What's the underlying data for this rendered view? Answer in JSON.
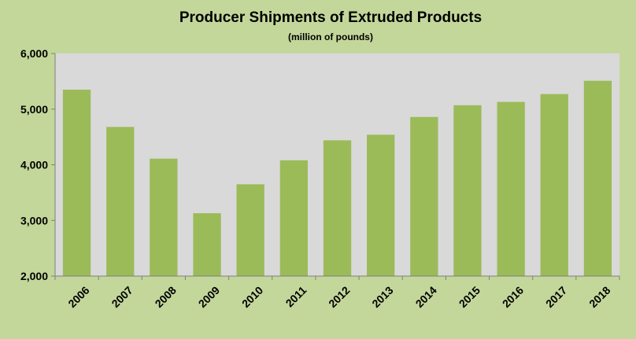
{
  "chart_data": {
    "type": "bar",
    "title": "Producer Shipments of Extruded Products",
    "subtitle": "(million of pounds)",
    "categories": [
      "2006",
      "2007",
      "2008",
      "2009",
      "2010",
      "2011",
      "2012",
      "2013",
      "2014",
      "2015",
      "2016",
      "2017",
      "2018"
    ],
    "values": [
      5350,
      4680,
      4110,
      3130,
      3650,
      4080,
      4440,
      4540,
      4860,
      5070,
      5130,
      5270,
      5510
    ],
    "ylim": [
      2000,
      6000
    ],
    "yticks": [
      2000,
      3000,
      4000,
      5000,
      6000
    ],
    "ytick_labels": [
      "2,000",
      "3,000",
      "4,000",
      "5,000",
      "6,000"
    ],
    "grid": false,
    "legend": "none",
    "colors": {
      "background": "#c4d79b",
      "plot_area": "#d9d9d9",
      "bar": "#9bbb59",
      "axis": "#7f7f7f"
    }
  }
}
